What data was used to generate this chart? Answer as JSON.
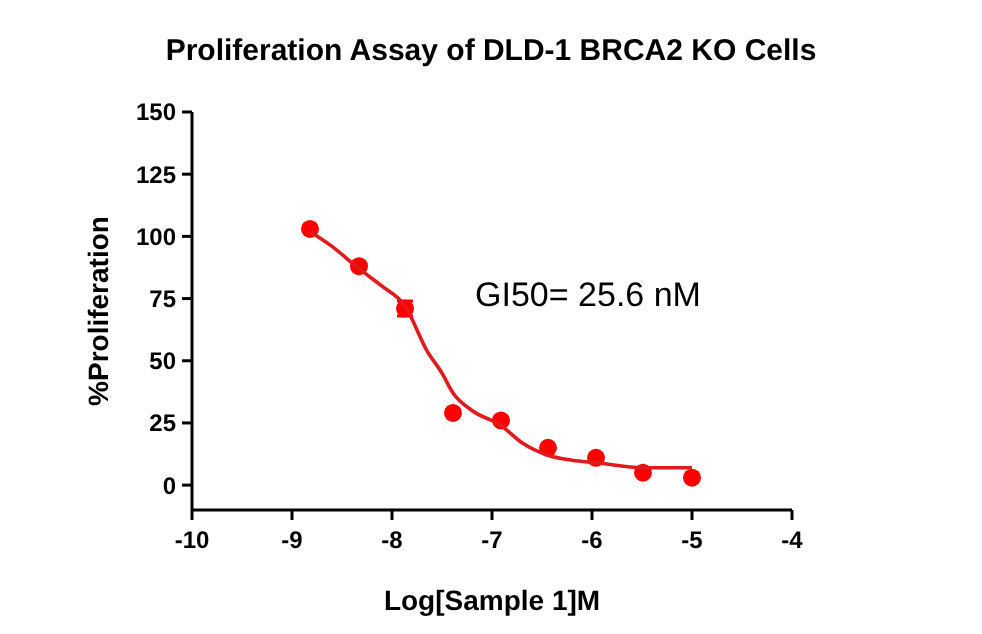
{
  "chart_data": {
    "type": "scatter",
    "title": "Proliferation Assay of DLD-1 BRCA2 KO Cells",
    "xlabel": "Log[Sample 1]M",
    "ylabel": "%Proliferation",
    "x": [
      -8.82,
      -8.33,
      -7.87,
      -7.39,
      -6.91,
      -6.44,
      -5.96,
      -5.49,
      -5.0
    ],
    "series": [
      {
        "marker": "circle",
        "color": "#ff0000",
        "values": [
          103,
          88,
          71,
          29,
          26,
          15,
          11,
          5,
          3
        ],
        "errors": [
          null,
          null,
          3,
          null,
          null,
          null,
          null,
          null,
          null
        ]
      },
      {
        "type": "line",
        "color": "#e31a1c",
        "x": [
          -8.82,
          -8.6,
          -8.33,
          -8.1,
          -7.87,
          -7.65,
          -7.5,
          -7.39,
          -7.2,
          -6.91,
          -6.7,
          -6.44,
          -6.2,
          -5.96,
          -5.49,
          -5.0
        ],
        "values": [
          102,
          96,
          87,
          80,
          72,
          54,
          45,
          37,
          30,
          24,
          17,
          12,
          10,
          9,
          7,
          7
        ]
      }
    ],
    "annotations": [
      "GI50= 25.6 nM"
    ],
    "xlim": [
      -10,
      -4
    ],
    "xticks": [
      -10,
      -9,
      -8,
      -7,
      -6,
      -5,
      -4
    ],
    "ylim": [
      -10,
      150
    ],
    "yticks": [
      0,
      25,
      50,
      75,
      100,
      125,
      150
    ],
    "grid": false
  }
}
